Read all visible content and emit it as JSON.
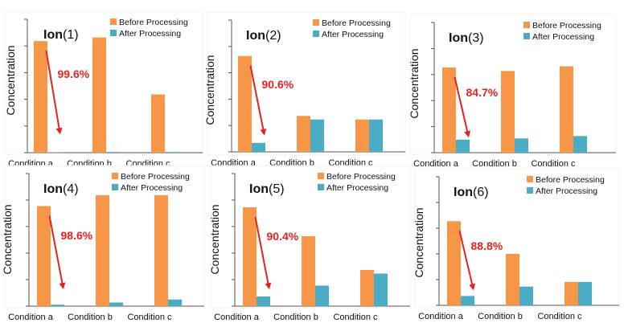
{
  "chart_data": [
    {
      "type": "bar",
      "title_main": "Ion",
      "title_sub": "(1)",
      "ylabel": "Concentration",
      "categories": [
        "Condition a",
        "Condition b",
        "Condition c"
      ],
      "series": [
        {
          "name": "Before Processing",
          "values": [
            92,
            95,
            48
          ]
        },
        {
          "name": "After Processing",
          "values": [
            0.4,
            0.6,
            0.6
          ]
        }
      ],
      "ylim": [
        0,
        110
      ],
      "annotation": "99.6%",
      "legend_position": "top-right"
    },
    {
      "type": "bar",
      "title_main": "Ion",
      "title_sub": "(2)",
      "ylabel": "Concentration",
      "categories": [
        "Condition a",
        "Condition b",
        "Condition c"
      ],
      "series": [
        {
          "name": "Before Processing",
          "values": [
            80,
            30,
            27
          ]
        },
        {
          "name": "After   Processing",
          "values": [
            7.5,
            27,
            27
          ]
        }
      ],
      "ylim": [
        0,
        110
      ],
      "annotation": "90.6%",
      "legend_position": "top-right"
    },
    {
      "type": "bar",
      "title_main": "Ion",
      "title_sub": "(3)",
      "ylabel": "Concentration",
      "categories": [
        "Condition a",
        "Condition b",
        "Condition c"
      ],
      "series": [
        {
          "name": "Before Processing",
          "values": [
            72,
            69,
            73
          ]
        },
        {
          "name": "After   Processing",
          "values": [
            11,
            12,
            14
          ]
        }
      ],
      "ylim": [
        0,
        110
      ],
      "annotation": "84.7%",
      "legend_position": "top-right"
    },
    {
      "type": "bar",
      "title_main": "Ion",
      "title_sub": "(4)",
      "ylabel": "Concentration",
      "categories": [
        "Condition a",
        "Condition b",
        "Condition c"
      ],
      "series": [
        {
          "name": "Before Processing",
          "values": [
            83,
            92,
            92
          ]
        },
        {
          "name": "After   Processing",
          "values": [
            1.2,
            3,
            5.5
          ]
        }
      ],
      "ylim": [
        0,
        110
      ],
      "annotation": "98.6%",
      "legend_position": "top-right"
    },
    {
      "type": "bar",
      "title_main": "Ion",
      "title_sub": "(5)",
      "ylabel": "Concentration",
      "categories": [
        "Condition a",
        "Condition b",
        "Condition c"
      ],
      "series": [
        {
          "name": "Before Processing",
          "values": [
            82,
            58,
            30
          ]
        },
        {
          "name": "After   Processing",
          "values": [
            8,
            17,
            27
          ]
        }
      ],
      "ylim": [
        0,
        110
      ],
      "annotation": "90.4%",
      "legend_position": "top-right"
    },
    {
      "type": "bar",
      "title_main": "Ion",
      "title_sub": "(6)",
      "ylabel": "Concentration",
      "categories": [
        "Condition a",
        "Condition b",
        "Condition c"
      ],
      "series": [
        {
          "name": "Before Processing",
          "values": [
            72,
            44,
            20
          ]
        },
        {
          "name": "After   Processing",
          "values": [
            8,
            16,
            20
          ]
        }
      ],
      "ylim": [
        0,
        110
      ],
      "annotation": "88.8%",
      "legend_position": "top-right"
    }
  ],
  "colors": {
    "before": "#f79646",
    "after": "#4bacc6",
    "arrow": "#e52222",
    "axis": "#555555",
    "text": "#111111"
  }
}
